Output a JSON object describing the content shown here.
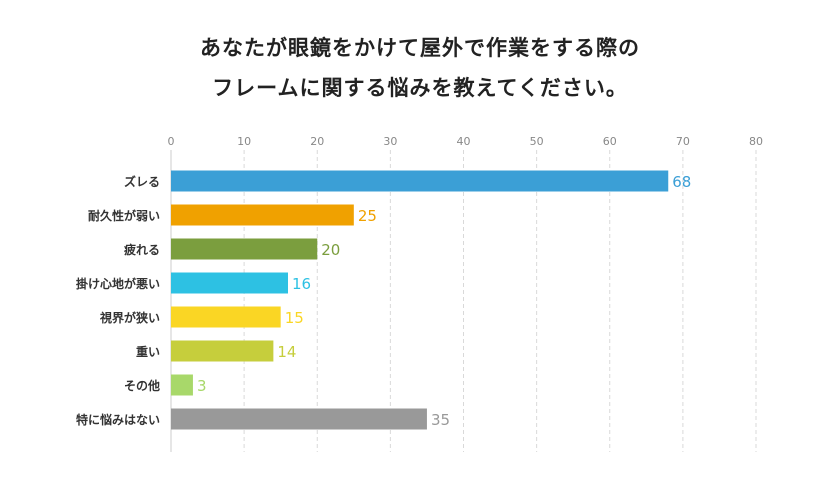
{
  "chart_data": {
    "type": "bar",
    "orientation": "horizontal",
    "title_lines": [
      "あなたが眼鏡をかけて屋外で作業をする際の",
      "フレームに関する悩みを教えてください。"
    ],
    "xlim": [
      0,
      80
    ],
    "xticks": [
      0,
      10,
      20,
      30,
      40,
      50,
      60,
      70,
      80
    ],
    "grid": "vertical dashed",
    "legend": "none",
    "categories": [
      "ズレる",
      "耐久性が弱い",
      "疲れる",
      "掛け心地が悪い",
      "視界が狭い",
      "重い",
      "その他",
      "特に悩みはない"
    ],
    "values": [
      68,
      25,
      20,
      16,
      15,
      14,
      3,
      35
    ],
    "colors": [
      "#3b9fd6",
      "#f0a100",
      "#7b9e3e",
      "#2dc1e3",
      "#fad624",
      "#c6ce3c",
      "#a8d86a",
      "#999999"
    ]
  }
}
